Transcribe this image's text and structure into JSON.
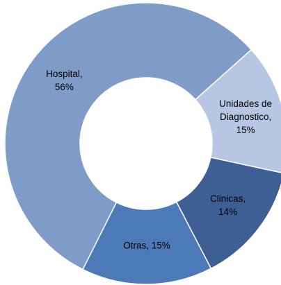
{
  "chart_data": {
    "type": "donut",
    "labels": [
      [
        "Hospital,",
        "56%"
      ],
      [
        "Unidades de",
        "Diagnostico,",
        "15%"
      ],
      [
        "Clinicas,",
        "14%"
      ],
      [
        "Otras, 15%"
      ]
    ],
    "values": [
      56,
      15,
      14,
      15
    ],
    "colors": [
      "#7f9cc9",
      "#b7c6e3",
      "#3d5f94",
      "#4c7ab8"
    ]
  }
}
